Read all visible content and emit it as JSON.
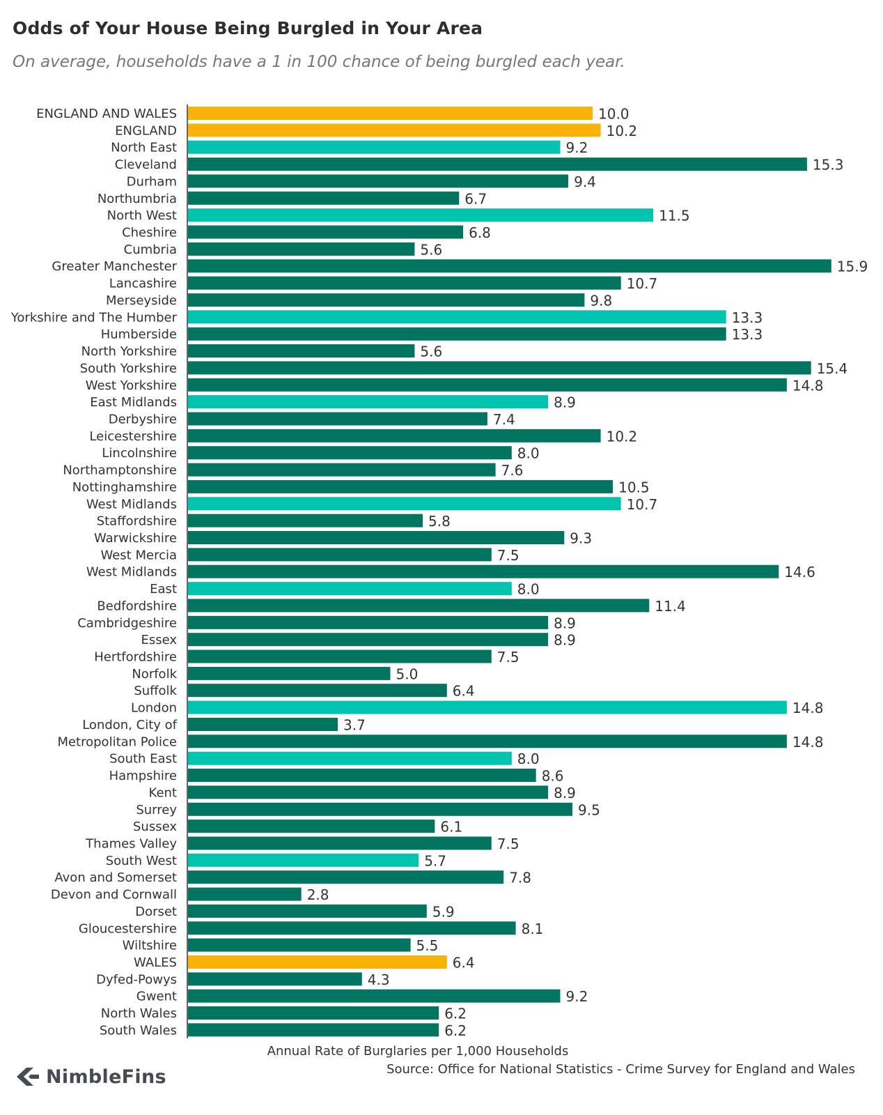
{
  "chart_data": {
    "type": "bar",
    "orientation": "horizontal",
    "title": "Odds of Your House Being Burgled in Your Area",
    "subtitle": "On average, households have a 1 in 100 chance of being burgled each year.",
    "xlabel": "Annual Rate of Burglaries per 1,000 Households",
    "xlim": [
      0,
      16
    ],
    "grid": false,
    "categories": [
      "ENGLAND AND WALES",
      "ENGLAND",
      "North East",
      "Cleveland",
      "Durham",
      "Northumbria",
      "North West",
      "Cheshire",
      "Cumbria",
      "Greater Manchester",
      "Lancashire",
      "Merseyside",
      "Yorkshire and The Humber",
      "Humberside",
      "North Yorkshire",
      "South Yorkshire",
      "West Yorkshire",
      "East Midlands",
      "Derbyshire",
      "Leicestershire",
      "Lincolnshire",
      "Northamptonshire",
      "Nottinghamshire",
      "West Midlands",
      "Staffordshire",
      "Warwickshire",
      "West Mercia",
      "West Midlands",
      "East",
      "Bedfordshire",
      "Cambridgeshire",
      "Essex",
      "Hertfordshire",
      "Norfolk",
      "Suffolk",
      "London",
      "London, City of",
      "Metropolitan Police",
      "South East",
      "Hampshire",
      "Kent",
      "Surrey",
      "Sussex",
      "Thames Valley",
      "South West",
      "Avon and Somerset",
      "Devon and Cornwall",
      "Dorset",
      "Gloucestershire",
      "Wiltshire",
      "WALES",
      "Dyfed-Powys",
      "Gwent",
      "North Wales",
      "South Wales"
    ],
    "values": [
      10.0,
      10.2,
      9.2,
      15.3,
      9.4,
      6.7,
      11.5,
      6.8,
      5.6,
      15.9,
      10.7,
      9.8,
      13.3,
      13.3,
      5.6,
      15.4,
      14.8,
      8.9,
      7.4,
      10.2,
      8.0,
      7.6,
      10.5,
      10.7,
      5.8,
      9.3,
      7.5,
      14.6,
      8.0,
      11.4,
      8.9,
      8.9,
      7.5,
      5.0,
      6.4,
      14.8,
      3.7,
      14.8,
      8.0,
      8.6,
      8.9,
      9.5,
      6.1,
      7.5,
      5.7,
      7.8,
      2.8,
      5.9,
      8.1,
      5.5,
      6.4,
      4.3,
      9.2,
      6.2,
      6.2
    ],
    "value_labels": [
      "10.0",
      "10.2",
      "9.2",
      "15.3",
      "9.4",
      "6.7",
      "11.5",
      "6.8",
      "5.6",
      "15.9",
      "10.7",
      "9.8",
      "13.3",
      "13.3",
      "5.6",
      "15.4",
      "14.8",
      "8.9",
      "7.4",
      "10.2",
      "8.0",
      "7.6",
      "10.5",
      "10.7",
      "5.8",
      "9.3",
      "7.5",
      "14.6",
      "8.0",
      "11.4",
      "8.9",
      "8.9",
      "7.5",
      "5.0",
      "6.4",
      "14.8",
      "3.7",
      "14.8",
      "8.0",
      "8.6",
      "8.9",
      "9.5",
      "6.1",
      "7.5",
      "5.7",
      "7.8",
      "2.8",
      "5.9",
      "8.1",
      "5.5",
      "6.4",
      "4.3",
      "9.2",
      "6.2",
      "6.2"
    ],
    "levels": [
      "national",
      "national",
      "region",
      "area",
      "area",
      "area",
      "region",
      "area",
      "area",
      "area",
      "area",
      "area",
      "region",
      "area",
      "area",
      "area",
      "area",
      "region",
      "area",
      "area",
      "area",
      "area",
      "area",
      "region",
      "area",
      "area",
      "area",
      "area",
      "region",
      "area",
      "area",
      "area",
      "area",
      "area",
      "area",
      "region",
      "area",
      "area",
      "region",
      "area",
      "area",
      "area",
      "area",
      "area",
      "region",
      "area",
      "area",
      "area",
      "area",
      "area",
      "national",
      "area",
      "area",
      "area",
      "area"
    ],
    "colors": {
      "national": "#f9b308",
      "region": "#00c4ae",
      "area": "#027560",
      "axis": "#333333"
    }
  },
  "footer": {
    "logo_text": "NimbleFins",
    "logo_icon": "chevron-left-icon",
    "source": "Source: Office for National Statistics - Crime Survey for England and Wales"
  }
}
